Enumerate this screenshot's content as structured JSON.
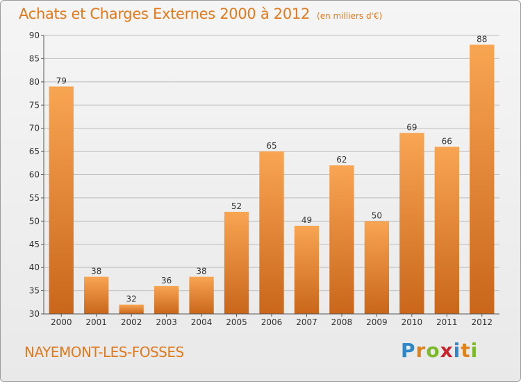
{
  "header": {
    "title": "Achats et Charges Externes 2000 à 2012",
    "subtitle": "(en milliers d'€)"
  },
  "footer": {
    "commune": "NAYEMONT-LES-FOSSES",
    "logo_letters": [
      "P",
      "r",
      "o",
      "x",
      "i",
      "t",
      "i"
    ],
    "logo_colors": [
      "#2f86c9",
      "#e0821b",
      "#7cb928",
      "#c8242f",
      "#2f86c9",
      "#e0821b",
      "#7cb928"
    ]
  },
  "colors": {
    "bar_top": "#f8a552",
    "bar_bottom": "#c9661a",
    "grid": "#bcbcbc",
    "title": "#e07a1c"
  },
  "chart_data": {
    "type": "bar",
    "title": "Achats et Charges Externes 2000 à 2012",
    "subtitle": "(en milliers d'€)",
    "categories": [
      "2000",
      "2001",
      "2002",
      "2003",
      "2004",
      "2005",
      "2006",
      "2007",
      "2008",
      "2009",
      "2010",
      "2011",
      "2012"
    ],
    "values": [
      79,
      38,
      32,
      36,
      38,
      52,
      65,
      49,
      62,
      50,
      69,
      66,
      88
    ],
    "ylim": [
      30,
      90
    ],
    "yticks": [
      30,
      35,
      40,
      45,
      50,
      55,
      60,
      65,
      70,
      75,
      80,
      85,
      90
    ],
    "grid": true,
    "xlabel": "",
    "ylabel": ""
  }
}
